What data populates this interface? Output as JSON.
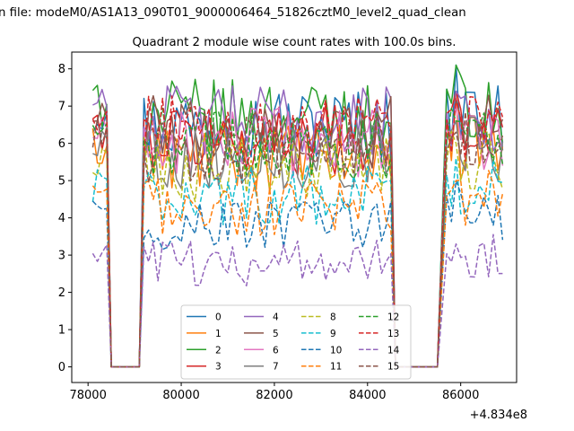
{
  "chart_data": {
    "type": "line",
    "suptitle": "n file: modeM0/AS1A13_090T01_9000006464_51826cztM0_level2_quad_clean",
    "title": "Quadrant 2 module wise count rates with 100.0s bins.",
    "xlabel": "",
    "ylabel": "",
    "x_offset_label": "+4.834e8",
    "xlim": [
      77650,
      87200
    ],
    "ylim": [
      -0.42,
      8.45
    ],
    "x_ticks": [
      78000,
      80000,
      82000,
      84000,
      86000
    ],
    "x_tick_labels": [
      "78000",
      "80000",
      "82000",
      "84000",
      "86000"
    ],
    "y_ticks": [
      0,
      1,
      2,
      3,
      4,
      5,
      6,
      7,
      8
    ],
    "y_tick_labels": [
      "0",
      "1",
      "2",
      "3",
      "4",
      "5",
      "6",
      "7",
      "8"
    ],
    "grid": false,
    "legend_position": "lower center",
    "legend_ncol": 4,
    "segments": [
      {
        "x_start": 78100,
        "x_end": 78400,
        "active": true
      },
      {
        "x_start": 78500,
        "x_end": 79100,
        "active": false
      },
      {
        "x_start": 79200,
        "x_end": 84500,
        "active": true
      },
      {
        "x_start": 84600,
        "x_end": 85500,
        "active": false
      },
      {
        "x_start": 85700,
        "x_end": 86900,
        "active": true
      }
    ],
    "series": [
      {
        "name": "0",
        "color": "#1f77b4",
        "dash": "solid",
        "level": 6.5,
        "peak": 8.1
      },
      {
        "name": "1",
        "color": "#ff7f0e",
        "dash": "solid",
        "level": 5.6,
        "peak": 7.3
      },
      {
        "name": "2",
        "color": "#2ca02c",
        "dash": "solid",
        "level": 6.7,
        "peak": 8.1
      },
      {
        "name": "3",
        "color": "#d62728",
        "dash": "solid",
        "level": 6.1,
        "peak": 7.4
      },
      {
        "name": "4",
        "color": "#9467bd",
        "dash": "solid",
        "level": 6.6,
        "peak": 7.4
      },
      {
        "name": "5",
        "color": "#8c564b",
        "dash": "solid",
        "level": 6.3,
        "peak": 7.2
      },
      {
        "name": "6",
        "color": "#e377c2",
        "dash": "solid",
        "level": 6.0,
        "peak": 7.0
      },
      {
        "name": "7",
        "color": "#7f7f7f",
        "dash": "solid",
        "level": 5.7,
        "peak": 6.6
      },
      {
        "name": "8",
        "color": "#bcbd22",
        "dash": "dashed",
        "level": 5.3,
        "peak": 6.0
      },
      {
        "name": "9",
        "color": "#17becf",
        "dash": "dashed",
        "level": 4.6,
        "peak": 5.6
      },
      {
        "name": "10",
        "color": "#1f77b4",
        "dash": "dashed",
        "level": 3.8,
        "peak": 5.0
      },
      {
        "name": "11",
        "color": "#ff7f0e",
        "dash": "dashed",
        "level": 4.3,
        "peak": 5.0
      },
      {
        "name": "12",
        "color": "#2ca02c",
        "dash": "dashed",
        "level": 6.0,
        "peak": 6.6
      },
      {
        "name": "13",
        "color": "#d62728",
        "dash": "dashed",
        "level": 6.3,
        "peak": 7.2
      },
      {
        "name": "14",
        "color": "#9467bd",
        "dash": "dashed",
        "level": 2.8,
        "peak": 3.3
      },
      {
        "name": "15",
        "color": "#8c564b",
        "dash": "dashed",
        "level": 5.8,
        "peak": 6.3
      }
    ]
  }
}
